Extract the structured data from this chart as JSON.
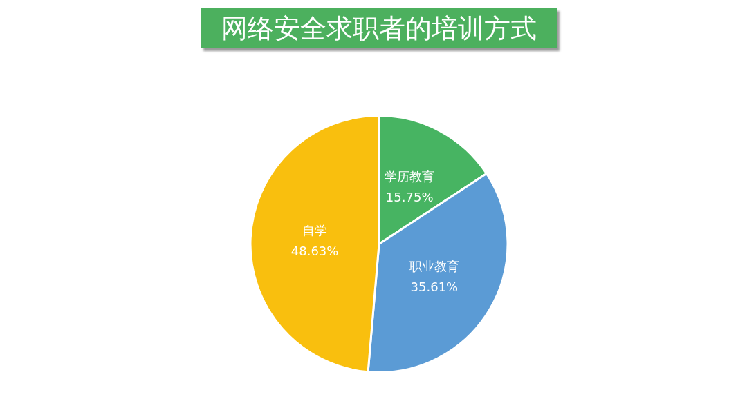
{
  "chart_data": {
    "type": "pie",
    "title": "网络安全求职者的培训方式",
    "categories": [
      "学历教育",
      "职业教育",
      "自学"
    ],
    "values": [
      15.75,
      35.61,
      48.63
    ],
    "colors": [
      "#47b462",
      "#5b9bd5",
      "#f9bf0e"
    ],
    "value_labels": [
      "15.75%",
      "35.61%",
      "48.63%"
    ],
    "legend": false
  }
}
